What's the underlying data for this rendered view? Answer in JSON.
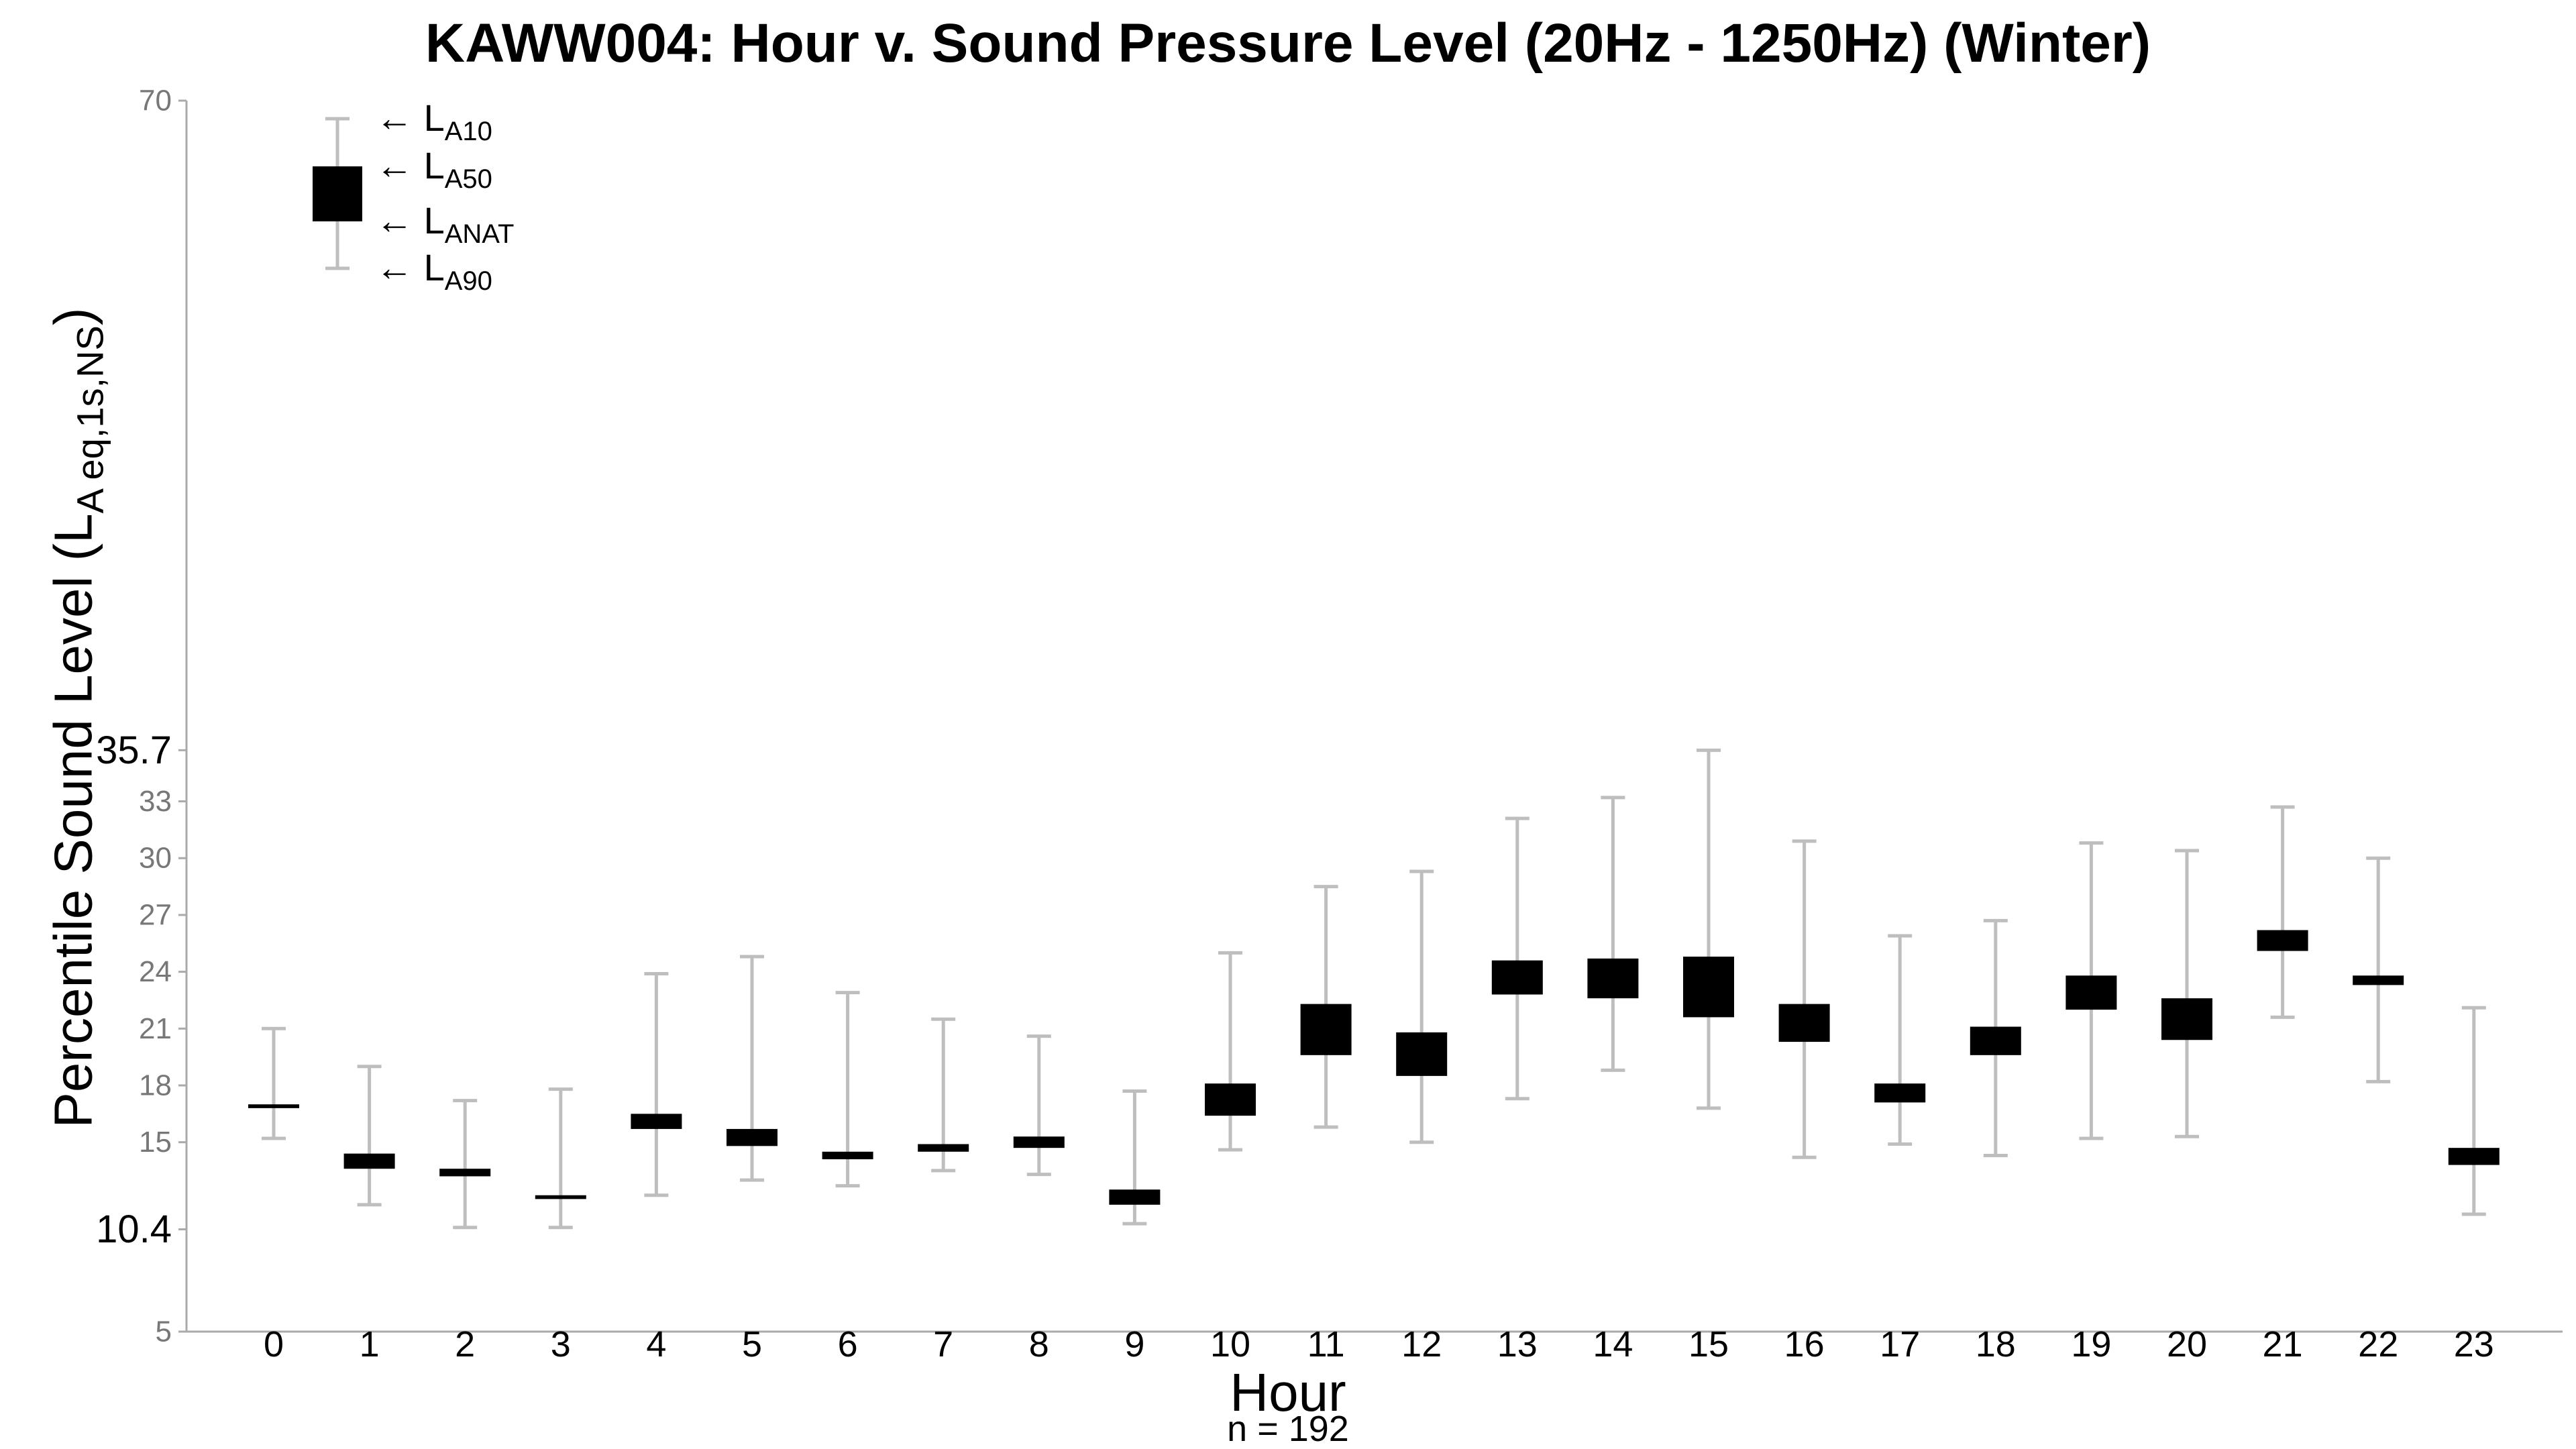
{
  "chart_data": {
    "type": "box",
    "title": "KAWW004: Hour v. Sound Pressure Level (20Hz - 1250Hz) (Winter)",
    "xlabel": "Hour",
    "ylabel_main": "Percentile Sound Level (L",
    "ylabel_sub": "A eq,1s,NS",
    "ylabel_close": ")",
    "note": "n = 192",
    "ylim": [
      5,
      70
    ],
    "yticks": [
      "5",
      "10.4",
      "15",
      "18",
      "21",
      "24",
      "27",
      "30",
      "33",
      "35.7",
      "70"
    ],
    "highlight_ticks": [
      "10.4",
      "35.7"
    ],
    "categories": [
      "0",
      "1",
      "2",
      "3",
      "4",
      "5",
      "6",
      "7",
      "8",
      "9",
      "10",
      "11",
      "12",
      "13",
      "14",
      "15",
      "16",
      "17",
      "18",
      "19",
      "20",
      "21",
      "22",
      "23"
    ],
    "boxes": [
      {
        "hour": "0",
        "L10": 21.0,
        "L50": 17.0,
        "LANAT": 16.8,
        "L90": 15.2
      },
      {
        "hour": "1",
        "L10": 19.0,
        "L50": 14.4,
        "LANAT": 13.6,
        "L90": 11.7
      },
      {
        "hour": "2",
        "L10": 17.2,
        "L50": 13.6,
        "LANAT": 13.2,
        "L90": 10.5
      },
      {
        "hour": "3",
        "L10": 17.8,
        "L50": 12.2,
        "LANAT": 12.0,
        "L90": 10.5
      },
      {
        "hour": "4",
        "L10": 23.9,
        "L50": 16.5,
        "LANAT": 15.7,
        "L90": 12.2
      },
      {
        "hour": "5",
        "L10": 24.8,
        "L50": 15.7,
        "LANAT": 14.8,
        "L90": 13.0
      },
      {
        "hour": "6",
        "L10": 22.9,
        "L50": 14.5,
        "LANAT": 14.1,
        "L90": 12.7
      },
      {
        "hour": "7",
        "L10": 21.5,
        "L50": 14.9,
        "LANAT": 14.5,
        "L90": 13.5
      },
      {
        "hour": "8",
        "L10": 20.6,
        "L50": 15.3,
        "LANAT": 14.7,
        "L90": 13.3
      },
      {
        "hour": "9",
        "L10": 17.7,
        "L50": 12.5,
        "LANAT": 11.7,
        "L90": 10.7
      },
      {
        "hour": "10",
        "L10": 25.0,
        "L50": 18.1,
        "LANAT": 16.4,
        "L90": 14.6
      },
      {
        "hour": "11",
        "L10": 28.5,
        "L50": 22.3,
        "LANAT": 19.6,
        "L90": 15.8
      },
      {
        "hour": "12",
        "L10": 29.3,
        "L50": 20.8,
        "LANAT": 18.5,
        "L90": 15.0
      },
      {
        "hour": "13",
        "L10": 32.1,
        "L50": 24.6,
        "LANAT": 22.8,
        "L90": 17.3
      },
      {
        "hour": "14",
        "L10": 33.2,
        "L50": 24.7,
        "LANAT": 22.6,
        "L90": 18.8
      },
      {
        "hour": "15",
        "L10": 35.7,
        "L50": 24.8,
        "LANAT": 21.6,
        "L90": 16.8
      },
      {
        "hour": "16",
        "L10": 30.9,
        "L50": 22.3,
        "LANAT": 20.3,
        "L90": 14.2
      },
      {
        "hour": "17",
        "L10": 25.9,
        "L50": 18.1,
        "LANAT": 17.1,
        "L90": 14.9
      },
      {
        "hour": "18",
        "L10": 26.7,
        "L50": 21.1,
        "LANAT": 19.6,
        "L90": 14.3
      },
      {
        "hour": "19",
        "L10": 30.8,
        "L50": 23.8,
        "LANAT": 22.0,
        "L90": 15.2
      },
      {
        "hour": "20",
        "L10": 30.4,
        "L50": 22.6,
        "LANAT": 20.4,
        "L90": 15.3
      },
      {
        "hour": "21",
        "L10": 32.7,
        "L50": 26.2,
        "LANAT": 25.1,
        "L90": 21.6
      },
      {
        "hour": "22",
        "L10": 30.0,
        "L50": 23.8,
        "LANAT": 23.3,
        "L90": 18.2
      },
      {
        "hour": "23",
        "L10": 22.1,
        "L50": 14.7,
        "LANAT": 13.8,
        "L90": 11.2
      }
    ],
    "legend": {
      "placement": "top-left",
      "entries": [
        {
          "arrow": "←",
          "main": "L",
          "sub": "A10"
        },
        {
          "arrow": "←",
          "main": "L",
          "sub": "A50"
        },
        {
          "arrow": "←",
          "main": "L",
          "sub": "ANAT"
        },
        {
          "arrow": "←",
          "main": "L",
          "sub": "A90"
        }
      ]
    },
    "colors": {
      "box": "#000000",
      "whisker": "#bebebe",
      "axis": "#aaaaaa",
      "tick_label": "#777777",
      "highlight_label": "#000000"
    }
  }
}
